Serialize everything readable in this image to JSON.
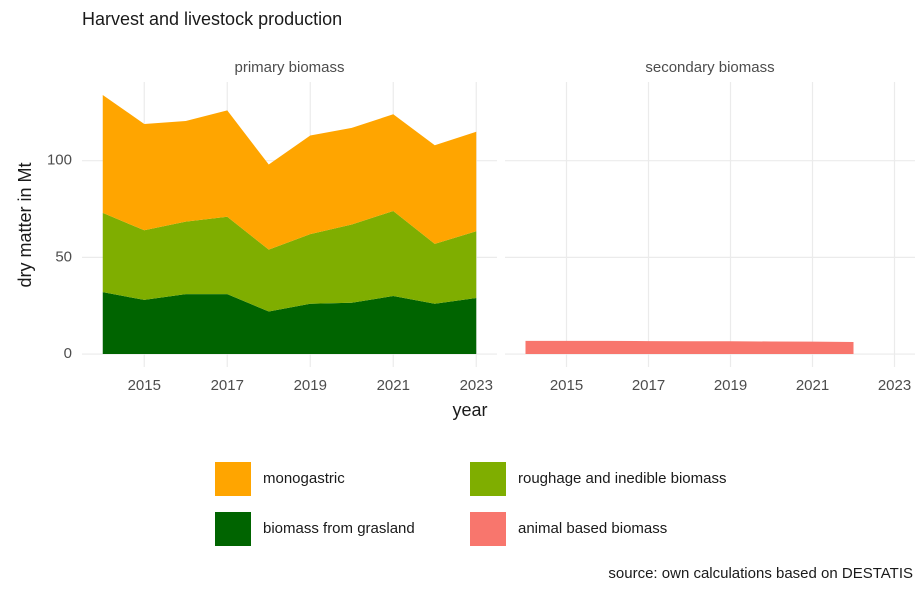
{
  "title": "Harvest and livestock production",
  "x_label": "year",
  "y_label": "dry matter in Mt",
  "source": "source: own calculations based on DESTATIS",
  "chart_data": [
    {
      "type": "area",
      "stacked": true,
      "title": "primary biomass",
      "x": [
        2014,
        2015,
        2016,
        2017,
        2018,
        2019,
        2020,
        2021,
        2022,
        2023
      ],
      "series": [
        {
          "name": "biomass from grasland",
          "color": "#006400",
          "values": [
            32,
            28,
            31,
            31,
            22,
            26,
            26.5,
            30,
            26,
            29
          ]
        },
        {
          "name": "roughage and inedible biomass",
          "color": "#7fae00",
          "values": [
            41,
            36,
            37.5,
            40,
            32,
            36,
            40.5,
            44,
            31,
            34.5
          ]
        },
        {
          "name": "monogastric",
          "color": "#ffa500",
          "values": [
            61,
            55,
            52,
            55,
            44,
            51,
            50,
            50,
            51,
            51.5
          ]
        }
      ],
      "xlim": [
        2013.5,
        2023.5
      ],
      "xticks": [
        2015,
        2017,
        2019,
        2021,
        2023
      ],
      "ylim": [
        -6.7,
        140.7
      ],
      "yticks": [
        0,
        50,
        100
      ],
      "grid": true
    },
    {
      "type": "area",
      "stacked": true,
      "title": "secondary biomass",
      "x": [
        2014,
        2015,
        2016,
        2017,
        2018,
        2019,
        2020,
        2021,
        2022
      ],
      "series": [
        {
          "name": "animal based biomass",
          "color": "#f8766d",
          "values": [
            6.8,
            6.8,
            6.8,
            6.7,
            6.6,
            6.6,
            6.5,
            6.4,
            6.2
          ]
        }
      ],
      "xlim": [
        2013.5,
        2023.5
      ],
      "xticks": [
        2015,
        2017,
        2019,
        2021,
        2023
      ],
      "ylim": [
        -6.7,
        140.7
      ],
      "yticks": [
        0,
        50,
        100
      ],
      "grid": true
    }
  ]
}
